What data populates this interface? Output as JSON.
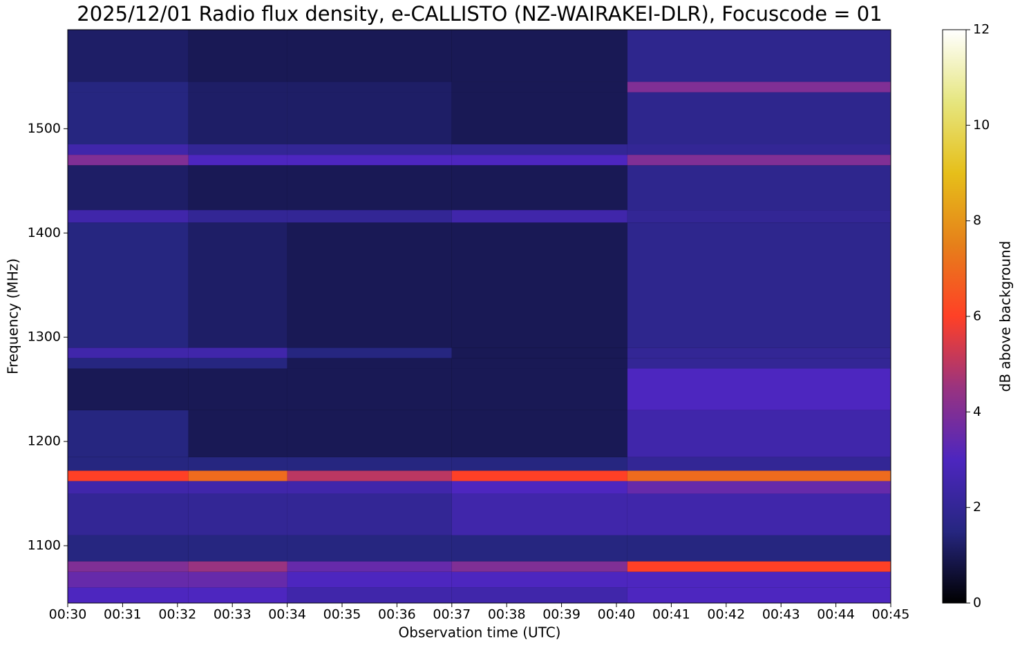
{
  "chart_data": {
    "type": "heatmap",
    "title": "2025/12/01 Radio flux density, e-CALLISTO (NZ-WAIRAKEI-DLR), Focuscode = 01",
    "x_label": "Observation time (UTC)",
    "y_label": "Frequency (MHz)",
    "colorbar_label": "dB above background",
    "x_edges": [
      30,
      32.2,
      34,
      37,
      40.2,
      45
    ],
    "y_edges": [
      1045,
      1060,
      1075,
      1085,
      1110,
      1150,
      1162,
      1172,
      1185,
      1230,
      1270,
      1280,
      1290,
      1410,
      1422,
      1465,
      1475,
      1485,
      1535,
      1545,
      1595
    ],
    "z": [
      [
        3,
        3,
        2.5,
        2.5,
        3
      ],
      [
        3.5,
        3.5,
        3,
        3,
        3
      ],
      [
        4,
        4.5,
        3.5,
        4,
        6
      ],
      [
        1.5,
        1.5,
        1.5,
        1.5,
        1.5
      ],
      [
        2,
        2,
        2,
        2.5,
        2.5
      ],
      [
        2.5,
        2.5,
        2.5,
        3,
        3.5
      ],
      [
        6,
        7,
        5,
        6,
        7
      ],
      [
        1.5,
        1.5,
        1.5,
        1.5,
        2
      ],
      [
        1.5,
        1,
        1,
        1,
        2.5
      ],
      [
        1,
        1,
        1,
        1,
        3
      ],
      [
        1.5,
        1.5,
        1,
        1,
        2
      ],
      [
        2.5,
        2.5,
        1.5,
        1,
        2
      ],
      [
        1.5,
        1.2,
        1,
        1,
        1.8
      ],
      [
        2.5,
        2,
        2,
        2.5,
        2
      ],
      [
        1.2,
        1,
        1,
        1,
        1.8
      ],
      [
        4,
        3,
        3,
        3,
        4
      ],
      [
        2.5,
        2,
        2,
        2,
        2
      ],
      [
        1.5,
        1.2,
        1.2,
        1,
        1.8
      ],
      [
        1.5,
        1.2,
        1.2,
        1,
        4
      ],
      [
        1.2,
        1,
        1,
        1,
        1.8
      ]
    ],
    "xlim": [
      30,
      45
    ],
    "xticks": [
      {
        "value": 30,
        "label": "00:30"
      },
      {
        "value": 31,
        "label": "00:31"
      },
      {
        "value": 32,
        "label": "00:32"
      },
      {
        "value": 33,
        "label": "00:33"
      },
      {
        "value": 34,
        "label": "00:34"
      },
      {
        "value": 35,
        "label": "00:35"
      },
      {
        "value": 36,
        "label": "00:36"
      },
      {
        "value": 37,
        "label": "00:37"
      },
      {
        "value": 38,
        "label": "00:38"
      },
      {
        "value": 39,
        "label": "00:39"
      },
      {
        "value": 40,
        "label": "00:40"
      },
      {
        "value": 41,
        "label": "00:41"
      },
      {
        "value": 42,
        "label": "00:42"
      },
      {
        "value": 43,
        "label": "00:43"
      },
      {
        "value": 44,
        "label": "00:44"
      },
      {
        "value": 45,
        "label": "00:45"
      }
    ],
    "ylim": [
      1045,
      1595
    ],
    "yticks": [
      1100,
      1200,
      1300,
      1400,
      1500
    ],
    "clim": [
      0,
      12
    ],
    "cticks": [
      0,
      2,
      4,
      6,
      8,
      10,
      12
    ],
    "colorscale": [
      "#000000",
      "#262680",
      "#4d26bf",
      "#993380",
      "#ff4026",
      "#e6801a",
      "#e6bf1a",
      "#e6e680",
      "#ffffff"
    ]
  }
}
